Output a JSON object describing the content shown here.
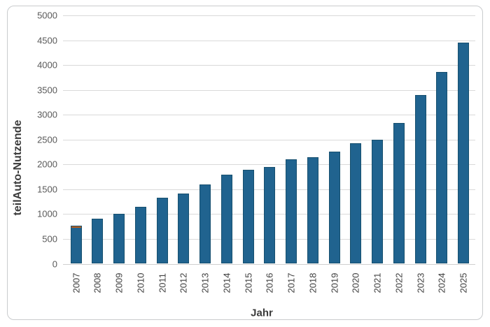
{
  "window": {
    "background_color": "#ffffff",
    "frame_border_color": "#c9cbcd"
  },
  "chart_data": {
    "type": "bar",
    "title": "",
    "xlabel": "Jahr",
    "ylabel": "teilAuto-Nutzende",
    "categories": [
      "2007",
      "2008",
      "2009",
      "2010",
      "2011",
      "2012",
      "2013",
      "2014",
      "2015",
      "2016",
      "2017",
      "2018",
      "2019",
      "2020",
      "2021",
      "2022",
      "2023",
      "2024",
      "2025"
    ],
    "values": [
      770,
      910,
      1010,
      1150,
      1330,
      1410,
      1590,
      1790,
      1890,
      1950,
      2100,
      2150,
      2260,
      2430,
      2490,
      2840,
      3390,
      3860,
      4450
    ],
    "ylim": [
      0,
      5000
    ],
    "yticks": [
      0,
      500,
      1000,
      1500,
      2000,
      2500,
      3000,
      3500,
      4000,
      4500,
      5000
    ],
    "grid": "horizontal",
    "legend": "none",
    "bar_color": "#20638f",
    "bar_border_color": "#17506f",
    "gridline_color": "#d9d9d9",
    "axis_line_color": "#cfcfcf",
    "ytick_label_color": "#595959",
    "xtick_label_color": "#404040",
    "axis_title_color": "#3b3b3b",
    "annotations": [
      {
        "category": "2007",
        "note": "thin orange cap on top of bar",
        "color": "#b85c1a"
      }
    ]
  }
}
